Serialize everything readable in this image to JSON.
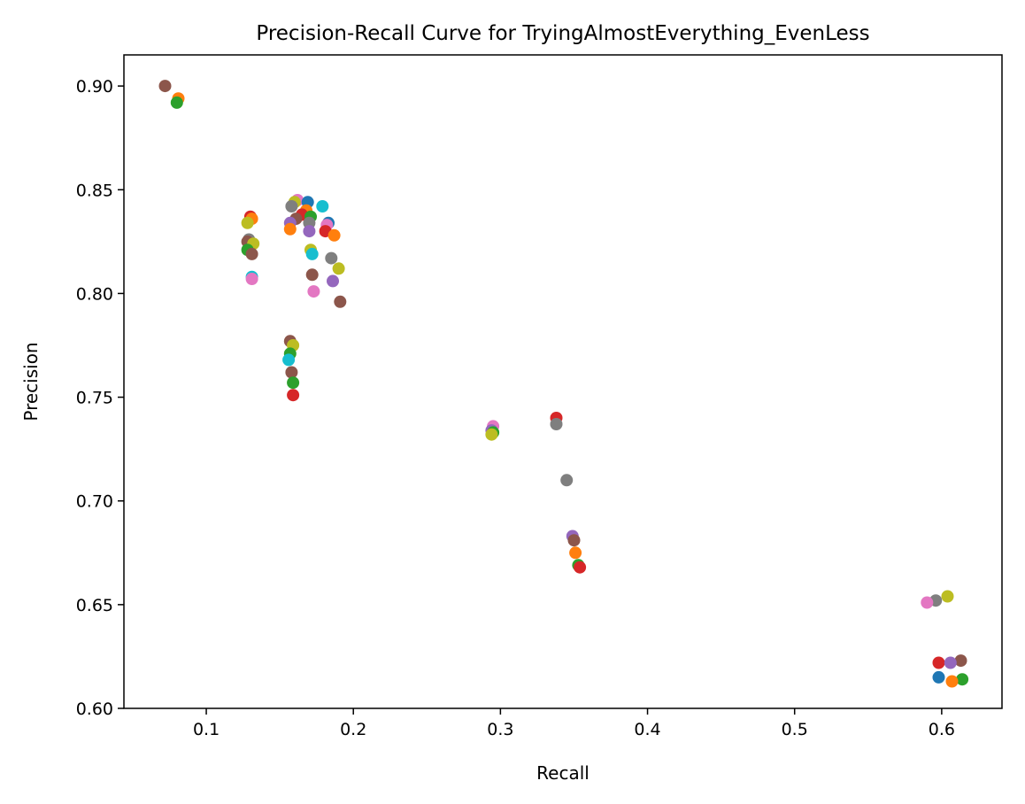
{
  "chart_data": {
    "type": "scatter",
    "title": "Precision-Recall Curve for TryingAlmostEverything_EvenLess",
    "xlabel": "Recall",
    "ylabel": "Precision",
    "xlim": [
      0.044,
      0.641
    ],
    "ylim": [
      0.6,
      0.915
    ],
    "xticks": [
      0.1,
      0.2,
      0.3,
      0.4,
      0.5,
      0.6
    ],
    "xtick_labels": [
      "0.1",
      "0.2",
      "0.3",
      "0.4",
      "0.5",
      "0.6"
    ],
    "yticks": [
      0.6,
      0.65,
      0.7,
      0.75,
      0.8,
      0.85,
      0.9
    ],
    "ytick_labels": [
      "0.60",
      "0.65",
      "0.70",
      "0.75",
      "0.80",
      "0.85",
      "0.90"
    ],
    "grid": false,
    "points": [
      {
        "x": 0.072,
        "y": 0.9,
        "color": "#8c564b"
      },
      {
        "x": 0.081,
        "y": 0.894,
        "color": "#ff7f0e"
      },
      {
        "x": 0.08,
        "y": 0.892,
        "color": "#2ca02c"
      },
      {
        "x": 0.13,
        "y": 0.837,
        "color": "#d62728"
      },
      {
        "x": 0.131,
        "y": 0.836,
        "color": "#ff7f0e"
      },
      {
        "x": 0.128,
        "y": 0.834,
        "color": "#bcbd22"
      },
      {
        "x": 0.129,
        "y": 0.826,
        "color": "#7f7f7f"
      },
      {
        "x": 0.128,
        "y": 0.825,
        "color": "#8c564b"
      },
      {
        "x": 0.132,
        "y": 0.824,
        "color": "#bcbd22"
      },
      {
        "x": 0.128,
        "y": 0.821,
        "color": "#2ca02c"
      },
      {
        "x": 0.131,
        "y": 0.819,
        "color": "#8c564b"
      },
      {
        "x": 0.131,
        "y": 0.808,
        "color": "#17becf"
      },
      {
        "x": 0.131,
        "y": 0.807,
        "color": "#e377c2"
      },
      {
        "x": 0.162,
        "y": 0.845,
        "color": "#e377c2"
      },
      {
        "x": 0.16,
        "y": 0.844,
        "color": "#bcbd22"
      },
      {
        "x": 0.169,
        "y": 0.844,
        "color": "#1f77b4"
      },
      {
        "x": 0.158,
        "y": 0.842,
        "color": "#7f7f7f"
      },
      {
        "x": 0.179,
        "y": 0.842,
        "color": "#17becf"
      },
      {
        "x": 0.168,
        "y": 0.84,
        "color": "#ff7f0e"
      },
      {
        "x": 0.165,
        "y": 0.838,
        "color": "#d62728"
      },
      {
        "x": 0.171,
        "y": 0.837,
        "color": "#2ca02c"
      },
      {
        "x": 0.161,
        "y": 0.836,
        "color": "#8c564b"
      },
      {
        "x": 0.157,
        "y": 0.834,
        "color": "#9467bd"
      },
      {
        "x": 0.17,
        "y": 0.834,
        "color": "#7f7f7f"
      },
      {
        "x": 0.183,
        "y": 0.834,
        "color": "#1f77b4"
      },
      {
        "x": 0.182,
        "y": 0.833,
        "color": "#e377c2"
      },
      {
        "x": 0.157,
        "y": 0.831,
        "color": "#ff7f0e"
      },
      {
        "x": 0.17,
        "y": 0.83,
        "color": "#9467bd"
      },
      {
        "x": 0.181,
        "y": 0.83,
        "color": "#d62728"
      },
      {
        "x": 0.187,
        "y": 0.828,
        "color": "#ff7f0e"
      },
      {
        "x": 0.171,
        "y": 0.821,
        "color": "#bcbd22"
      },
      {
        "x": 0.172,
        "y": 0.819,
        "color": "#17becf"
      },
      {
        "x": 0.185,
        "y": 0.817,
        "color": "#7f7f7f"
      },
      {
        "x": 0.19,
        "y": 0.812,
        "color": "#bcbd22"
      },
      {
        "x": 0.172,
        "y": 0.809,
        "color": "#8c564b"
      },
      {
        "x": 0.186,
        "y": 0.806,
        "color": "#9467bd"
      },
      {
        "x": 0.173,
        "y": 0.801,
        "color": "#e377c2"
      },
      {
        "x": 0.191,
        "y": 0.796,
        "color": "#8c564b"
      },
      {
        "x": 0.157,
        "y": 0.777,
        "color": "#8c564b"
      },
      {
        "x": 0.159,
        "y": 0.775,
        "color": "#bcbd22"
      },
      {
        "x": 0.157,
        "y": 0.771,
        "color": "#2ca02c"
      },
      {
        "x": 0.156,
        "y": 0.768,
        "color": "#17becf"
      },
      {
        "x": 0.158,
        "y": 0.762,
        "color": "#8c564b"
      },
      {
        "x": 0.159,
        "y": 0.757,
        "color": "#2ca02c"
      },
      {
        "x": 0.159,
        "y": 0.751,
        "color": "#d62728"
      },
      {
        "x": 0.295,
        "y": 0.736,
        "color": "#e377c2"
      },
      {
        "x": 0.294,
        "y": 0.734,
        "color": "#9467bd"
      },
      {
        "x": 0.295,
        "y": 0.733,
        "color": "#2ca02c"
      },
      {
        "x": 0.294,
        "y": 0.732,
        "color": "#bcbd22"
      },
      {
        "x": 0.338,
        "y": 0.74,
        "color": "#d62728"
      },
      {
        "x": 0.338,
        "y": 0.737,
        "color": "#7f7f7f"
      },
      {
        "x": 0.345,
        "y": 0.71,
        "color": "#7f7f7f"
      },
      {
        "x": 0.349,
        "y": 0.683,
        "color": "#9467bd"
      },
      {
        "x": 0.35,
        "y": 0.681,
        "color": "#8c564b"
      },
      {
        "x": 0.351,
        "y": 0.675,
        "color": "#ff7f0e"
      },
      {
        "x": 0.353,
        "y": 0.669,
        "color": "#2ca02c"
      },
      {
        "x": 0.354,
        "y": 0.668,
        "color": "#d62728"
      },
      {
        "x": 0.604,
        "y": 0.654,
        "color": "#bcbd22"
      },
      {
        "x": 0.596,
        "y": 0.652,
        "color": "#7f7f7f"
      },
      {
        "x": 0.59,
        "y": 0.651,
        "color": "#e377c2"
      },
      {
        "x": 0.613,
        "y": 0.623,
        "color": "#8c564b"
      },
      {
        "x": 0.598,
        "y": 0.622,
        "color": "#d62728"
      },
      {
        "x": 0.606,
        "y": 0.622,
        "color": "#9467bd"
      },
      {
        "x": 0.598,
        "y": 0.615,
        "color": "#1f77b4"
      },
      {
        "x": 0.614,
        "y": 0.614,
        "color": "#2ca02c"
      },
      {
        "x": 0.607,
        "y": 0.613,
        "color": "#ff7f0e"
      }
    ]
  }
}
